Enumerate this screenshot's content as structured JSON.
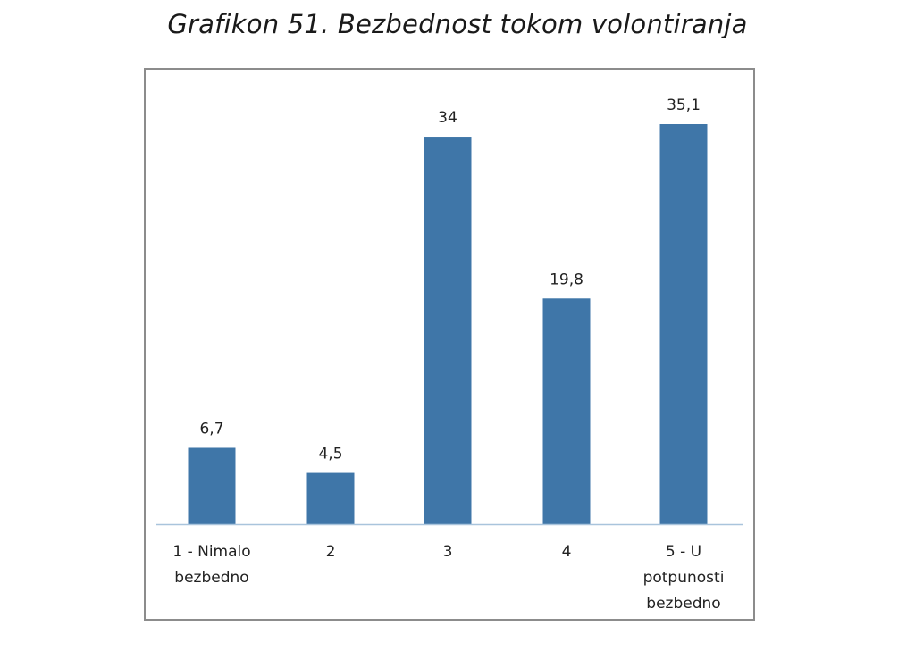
{
  "chart_data": {
    "type": "bar",
    "title": "Grafikon 51. Bezbednost tokom volontiranja",
    "categories": [
      [
        "1 - Nimalo",
        "bezbedno"
      ],
      [
        "2"
      ],
      [
        "3"
      ],
      [
        "4"
      ],
      [
        "5 - U",
        "potpunosti",
        "bezbedno"
      ]
    ],
    "values": [
      6.7,
      4.5,
      34,
      19.8,
      35.1
    ],
    "value_labels": [
      "6,7",
      "4,5",
      "34",
      "19,8",
      "35,1"
    ],
    "ylim": [
      0,
      35.1
    ],
    "grid": false,
    "legend": "none",
    "bar_color": "#3f76a8",
    "axis_color": "#a9c4dc"
  }
}
